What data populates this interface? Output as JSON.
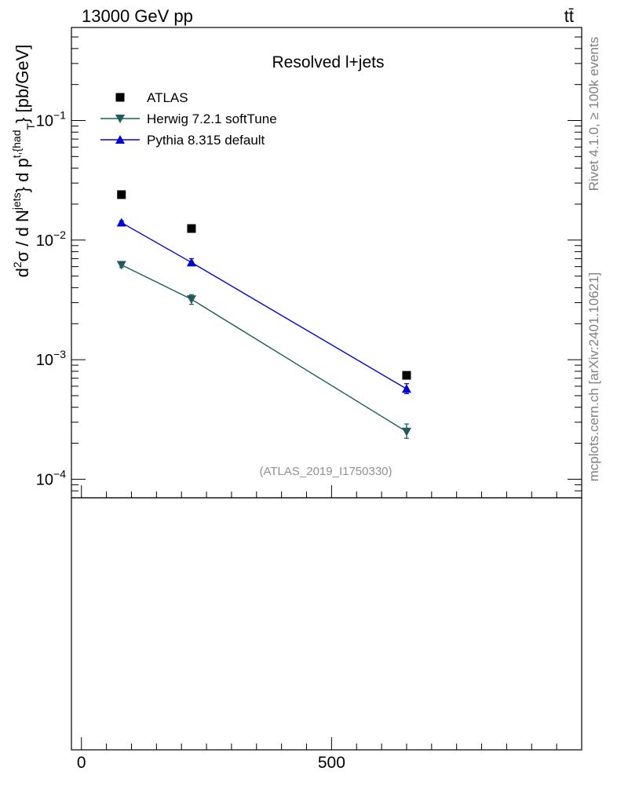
{
  "header": {
    "left": "13000 GeV pp",
    "right": "tt̄"
  },
  "side_text": {
    "rivet": "Rivet 4.1.0, ≥ 100k events",
    "mcplots": "mcplots.cern.ch [arXiv:2401.10621]"
  },
  "chart_data": {
    "type": "scatter",
    "title": "Resolved l+jets",
    "analysis_id": "(ATLAS_2019_I1750330)",
    "ylabel": "d²σ / d N^{jets} d p_T^{t,had} [pb/GeV]",
    "xlabel": "",
    "yscale": "log",
    "ylim": [
      7e-05,
      0.6
    ],
    "xlim": [
      -20,
      1000
    ],
    "x_ticks": [
      0,
      500
    ],
    "x_tick_labels": [
      "0",
      "500"
    ],
    "y_tick_labels": [
      {
        "value": 0.1,
        "base": "10",
        "exp": "−1"
      },
      {
        "value": 0.01,
        "base": "10",
        "exp": "−2"
      },
      {
        "value": 0.001,
        "base": "10",
        "exp": "−3"
      },
      {
        "value": 0.0001,
        "base": "10",
        "exp": "−4"
      }
    ],
    "legend_position": "top-left",
    "series": [
      {
        "name": "ATLAS",
        "marker": "square",
        "color": "#000000",
        "line": false,
        "points": [
          {
            "x": 80,
            "y": 0.024
          },
          {
            "x": 220,
            "y": 0.0125
          },
          {
            "x": 650,
            "y": 0.00074
          }
        ]
      },
      {
        "name": "Herwig 7.2.1 softTune",
        "marker": "triangle-down",
        "color": "#1f5b5e",
        "line": true,
        "points": [
          {
            "x": 80,
            "y": 0.0062,
            "ylo": 0.0059,
            "yhi": 0.0065
          },
          {
            "x": 220,
            "y": 0.0032,
            "ylo": 0.0029,
            "yhi": 0.0035
          },
          {
            "x": 650,
            "y": 0.00025,
            "ylo": 0.00022,
            "yhi": 0.00029
          }
        ]
      },
      {
        "name": "Pythia 8.315 default",
        "marker": "triangle-up",
        "color": "#0000dd",
        "line": true,
        "points": [
          {
            "x": 80,
            "y": 0.014,
            "ylo": 0.0135,
            "yhi": 0.0145
          },
          {
            "x": 220,
            "y": 0.0065,
            "ylo": 0.0061,
            "yhi": 0.007
          },
          {
            "x": 650,
            "y": 0.00057,
            "ylo": 0.00052,
            "yhi": 0.00063
          }
        ]
      }
    ]
  }
}
